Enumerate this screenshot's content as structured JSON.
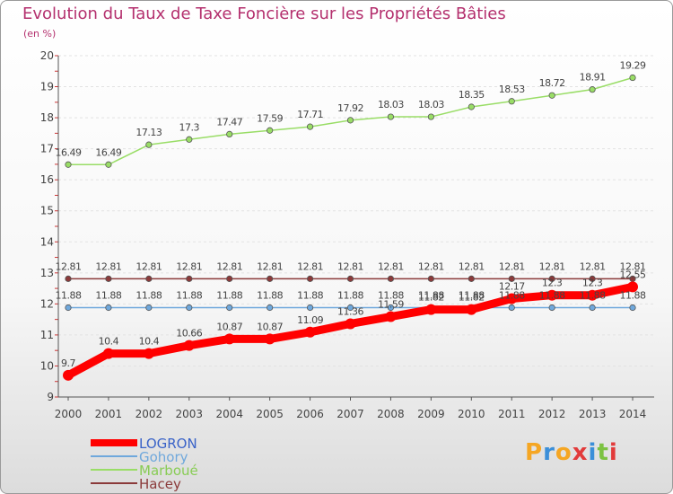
{
  "chart_data": {
    "type": "line",
    "title": "Evolution du Taux de Taxe Foncière sur les Propriétés Bâties",
    "subtitle": "(en %)",
    "xlabel": "",
    "ylabel": "",
    "ylim": [
      9,
      20
    ],
    "yticks": [
      "9",
      "10",
      "11",
      "12",
      "13",
      "14",
      "15",
      "16",
      "17",
      "18",
      "19",
      "20"
    ],
    "x": [
      "2000",
      "2001",
      "2002",
      "2003",
      "2004",
      "2005",
      "2006",
      "2007",
      "2008",
      "2009",
      "2010",
      "2011",
      "2012",
      "2013",
      "2014"
    ],
    "legend_position": "bottom-left",
    "series": [
      {
        "name": "LOGRON",
        "color": "#ff0000",
        "values": [
          9.7,
          10.4,
          10.4,
          10.66,
          10.87,
          10.87,
          11.09,
          11.36,
          11.59,
          11.82,
          11.82,
          12.17,
          12.28,
          12.28,
          12.55
        ],
        "labels": [
          "9.7",
          "10.4",
          "10.4",
          "10.66",
          "10.87",
          "10.87",
          "11.09",
          "11.36",
          "11.59",
          "11.82",
          "11.82",
          "12.17",
          "12.3",
          "12.3",
          "12.55"
        ]
      },
      {
        "name": "Gohory",
        "color": "#6fa8dc",
        "values": [
          11.88,
          11.88,
          11.88,
          11.88,
          11.88,
          11.88,
          11.88,
          11.88,
          11.88,
          11.88,
          11.88,
          11.88,
          11.88,
          11.88,
          11.88
        ],
        "labels": [
          "11.88",
          "11.88",
          "11.88",
          "11.88",
          "11.88",
          "11.88",
          "11.88",
          "11.88",
          "11.88",
          "11.88",
          "11.88",
          "11.88",
          "11.88",
          "11.88",
          "11.88"
        ]
      },
      {
        "name": "Marboué",
        "color": "#99dd66",
        "values": [
          16.49,
          16.49,
          17.13,
          17.3,
          17.47,
          17.59,
          17.71,
          17.92,
          18.03,
          18.03,
          18.35,
          18.53,
          18.72,
          18.91,
          19.29
        ],
        "labels": [
          "16.49",
          "16.49",
          "17.13",
          "17.3",
          "17.47",
          "17.59",
          "17.71",
          "17.92",
          "18.03",
          "18.03",
          "18.35",
          "18.53",
          "18.72",
          "18.91",
          "19.29"
        ]
      },
      {
        "name": "Hacey",
        "color": "#8b3a3a",
        "values": [
          12.81,
          12.81,
          12.81,
          12.81,
          12.81,
          12.81,
          12.81,
          12.81,
          12.81,
          12.81,
          12.81,
          12.81,
          12.81,
          12.81,
          12.81
        ],
        "labels": [
          "12.81",
          "12.81",
          "12.81",
          "12.81",
          "12.81",
          "12.81",
          "12.81",
          "12.81",
          "12.81",
          "12.81",
          "12.81",
          "12.81",
          "12.81",
          "12.81",
          "12.81"
        ]
      }
    ]
  },
  "logo": {
    "letters": [
      "P",
      "r",
      "o",
      "x",
      "i",
      "t",
      "i"
    ],
    "colors": [
      "#f5a623",
      "#3b8fd9",
      "#f5a623",
      "#e23b3b",
      "#3b8fd9",
      "#7cc242",
      "#e23b3b"
    ]
  }
}
